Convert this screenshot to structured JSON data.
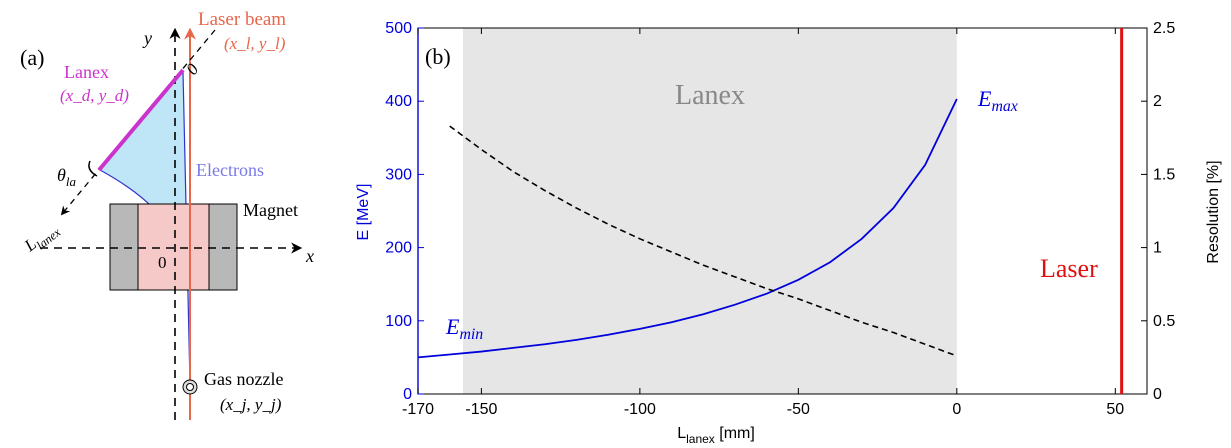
{
  "panel_a": {
    "label": "(a)",
    "y_axis_label": "y",
    "x_axis_label": "x",
    "laser_beam_label": "Laser beam",
    "laser_coords_label": "(x_l, y_l)",
    "lanex_label": "Lanex",
    "lanex_coords_label": "(x_d, y_d)",
    "theta_label": "θ_la",
    "l_lanex_label": "L_lanex",
    "electrons_label": "Electrons",
    "magnet_label": "Magnet",
    "origin_label": "0",
    "lanex_zero_label": "0",
    "gas_nozzle_label": "Gas nozzle",
    "gas_nozzle_coords_label": "(x_j, y_j)",
    "colors": {
      "laser": "#e8664a",
      "lanex": "#cc33cc",
      "electrons_fill": "#bfe6f7",
      "electrons_line": "#3333cc",
      "electrons_text": "#7a7ae6",
      "magnet_core": "#f6c9c9",
      "magnet_pole": "#b8b8b8"
    }
  },
  "panel_b": {
    "label": "(b)",
    "lanex_region_label": "Lanex",
    "e_max_label": "E_max",
    "e_min_label": "E_min",
    "laser_label": "Laser"
  },
  "chart_data": {
    "type": "line",
    "xlabel": "L_lanex [mm]",
    "ylabel_left": "E [MeV]",
    "ylabel_right": "Resolution [%]",
    "xlim": [
      -170,
      60
    ],
    "ylim_left": [
      0,
      500
    ],
    "ylim_right": [
      0,
      2.5
    ],
    "x_ticks": [
      "-170",
      "-150",
      "-100",
      "-50",
      "0",
      "50"
    ],
    "x_tick_values": [
      -170,
      -150,
      -100,
      -50,
      0,
      50
    ],
    "y_ticks_left": [
      "0",
      "100",
      "200",
      "300",
      "400",
      "500"
    ],
    "y_tick_values_left": [
      0,
      100,
      200,
      300,
      400,
      500
    ],
    "y_ticks_right": [
      "0",
      "0.5",
      "1",
      "1.5",
      "2",
      "2.5"
    ],
    "y_tick_values_right": [
      0,
      0.5,
      1,
      1.5,
      2,
      2.5
    ],
    "lanex_region": [
      -170,
      0
    ],
    "laser_position": 52,
    "series": [
      {
        "axis": "left",
        "color": "#0000dd",
        "style": "solid",
        "x": [
          -170,
          -160,
          -150,
          -140,
          -130,
          -120,
          -110,
          -100,
          -90,
          -80,
          -70,
          -60,
          -50,
          -40,
          -30,
          -20,
          -10,
          0
        ],
        "values": [
          50,
          54,
          58,
          63,
          68,
          74,
          81,
          89,
          98,
          109,
          122,
          137,
          156,
          180,
          212,
          254,
          313,
          403
        ]
      },
      {
        "axis": "right",
        "color": "#000000",
        "style": "dashed",
        "x": [
          -160,
          -150,
          -140,
          -130,
          -120,
          -110,
          -100,
          -90,
          -80,
          -70,
          -60,
          -50,
          -40,
          -30,
          -20,
          -10,
          0
        ],
        "values": [
          1.83,
          1.67,
          1.52,
          1.39,
          1.27,
          1.16,
          1.06,
          0.97,
          0.88,
          0.8,
          0.72,
          0.65,
          0.57,
          0.49,
          0.42,
          0.34,
          0.26
        ]
      }
    ]
  }
}
